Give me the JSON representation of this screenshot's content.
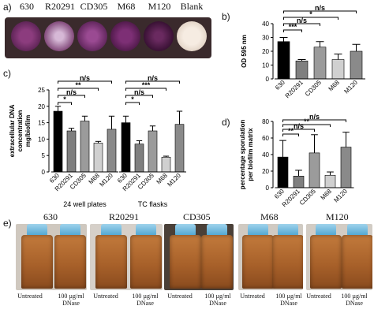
{
  "panels": {
    "a": {
      "label": "a)",
      "wells": [
        "630",
        "R20291",
        "CD305",
        "M68",
        "M120",
        "Blank"
      ]
    },
    "b": {
      "label": "b)",
      "ylabel": "OD 595 nm"
    },
    "c": {
      "label": "c)",
      "ylabel_lines": [
        "extracellular DNA",
        "concentration",
        "mg/biofilm"
      ],
      "group1": "24 well plates",
      "group2": "TC flasks"
    },
    "d": {
      "label": "d)",
      "ylabel_lines": [
        "percentage sporulation",
        "per biofilm matrix"
      ]
    },
    "e": {
      "label": "e)",
      "strains": [
        "630",
        "R20291",
        "CD305",
        "M68",
        "M120"
      ],
      "untreated": "Untreated",
      "dnase_line1": "100 µg/ml",
      "dnase_line2": "DNase"
    }
  },
  "chart_data": [
    {
      "type": "bar",
      "panel": "b",
      "ylabel": "OD 595 nm",
      "categories": [
        "630",
        "R20291",
        "CD305",
        "M68",
        "M120"
      ],
      "values": [
        27,
        13,
        23,
        14,
        20
      ],
      "errors": [
        3,
        1,
        4,
        4,
        5
      ],
      "ylim": [
        0,
        40
      ],
      "yticks": [
        "0",
        "10",
        "20",
        "30",
        "40"
      ],
      "colors": [
        "#000000",
        "#7f7f7f",
        "#9b9b9b",
        "#d0d0d0",
        "#8a8a8a"
      ],
      "significance": [
        {
          "from": 0,
          "to": 1,
          "label": "***"
        },
        {
          "from": 0,
          "to": 2,
          "label": "n/s"
        },
        {
          "from": 0,
          "to": 3,
          "label": "*"
        },
        {
          "from": 0,
          "to": 4,
          "label": "n/s"
        }
      ]
    },
    {
      "type": "bar",
      "panel": "c",
      "ylabel": "extracellular DNA concentration mg/biofilm",
      "groups": [
        {
          "name": "24 well plates",
          "categories": [
            "630",
            "R20291",
            "CD305",
            "M68",
            "M120"
          ],
          "values": [
            18.5,
            12.5,
            15.5,
            8.8,
            13
          ],
          "errors": [
            1.5,
            0.8,
            1.5,
            0.5,
            4
          ]
        },
        {
          "name": "TC flasks",
          "categories": [
            "630",
            "R20291",
            "CD305",
            "M68",
            "M120"
          ],
          "values": [
            15,
            8.5,
            12.5,
            4.5,
            14.5
          ],
          "errors": [
            2,
            1,
            1.5,
            0.3,
            4
          ]
        }
      ],
      "ylim": [
        0,
        25
      ],
      "yticks": [
        "0",
        "5",
        "10",
        "15",
        "20",
        "25"
      ],
      "colors": [
        "#000000",
        "#7f7f7f",
        "#9b9b9b",
        "#d0d0d0",
        "#8a8a8a"
      ],
      "significance": [
        {
          "group": 0,
          "from": 0,
          "to": 1,
          "label": "*"
        },
        {
          "group": 0,
          "from": 0,
          "to": 2,
          "label": "n/s"
        },
        {
          "group": 0,
          "from": 0,
          "to": 3,
          "label": "**"
        },
        {
          "group": 0,
          "from": 0,
          "to": 4,
          "label": "n/s"
        },
        {
          "group": 1,
          "from": 0,
          "to": 1,
          "label": "*"
        },
        {
          "group": 1,
          "from": 0,
          "to": 2,
          "label": "n/s"
        },
        {
          "group": 1,
          "from": 0,
          "to": 3,
          "label": "***"
        },
        {
          "group": 1,
          "from": 0,
          "to": 4,
          "label": "n/s"
        }
      ]
    },
    {
      "type": "bar",
      "panel": "d",
      "ylabel": "percentage sporulation per biofilm matrix",
      "categories": [
        "630",
        "R20291",
        "CD305",
        "M68",
        "M120"
      ],
      "values": [
        37,
        14,
        42,
        15,
        49
      ],
      "errors": [
        20,
        7,
        22,
        4,
        18
      ],
      "ylim": [
        0,
        80
      ],
      "yticks": [
        "0",
        "20",
        "40",
        "60",
        "80"
      ],
      "colors": [
        "#000000",
        "#7f7f7f",
        "#9b9b9b",
        "#d0d0d0",
        "#8a8a8a"
      ],
      "significance": [
        {
          "from": 0,
          "to": 1,
          "label": "**"
        },
        {
          "from": 0,
          "to": 2,
          "label": "n/s"
        },
        {
          "from": 0,
          "to": 3,
          "label": "**"
        },
        {
          "from": 0,
          "to": 4,
          "label": "n/s"
        }
      ]
    }
  ]
}
